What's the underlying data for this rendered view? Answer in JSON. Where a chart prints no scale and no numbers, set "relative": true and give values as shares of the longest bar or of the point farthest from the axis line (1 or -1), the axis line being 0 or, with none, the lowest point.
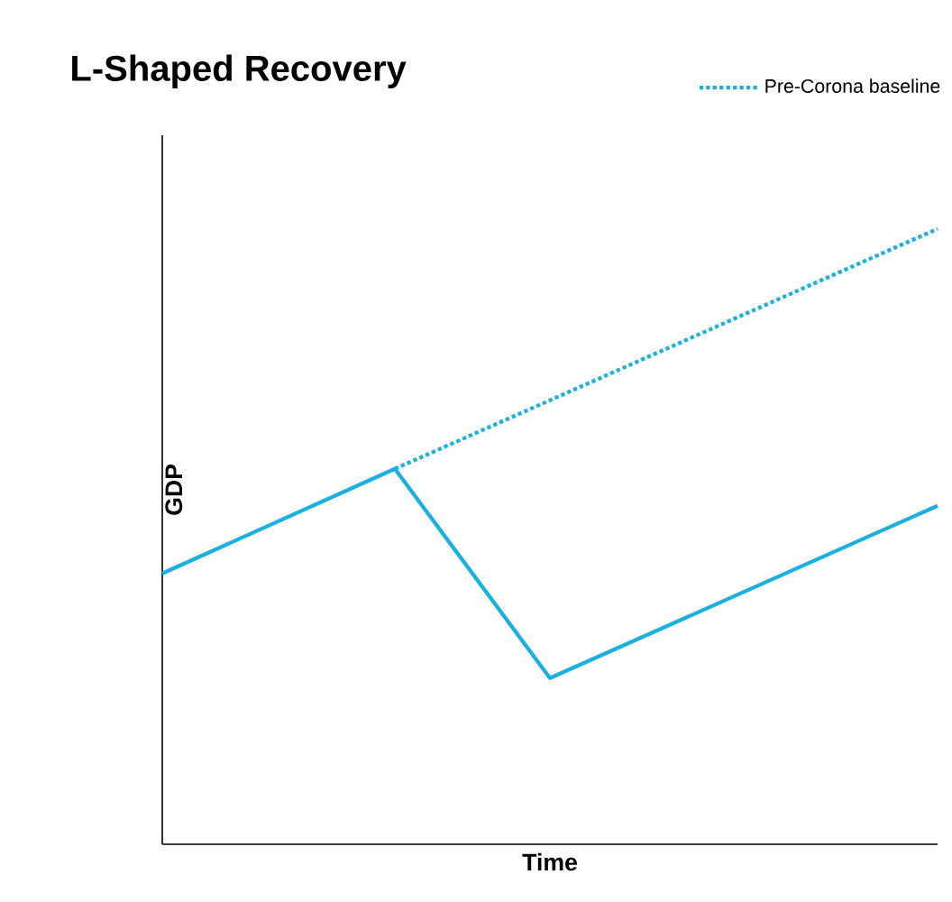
{
  "chart_data": {
    "type": "line",
    "title": "L-Shaped Recovery",
    "xlabel": "Time",
    "ylabel": "GDP",
    "categories": [
      null,
      null,
      null,
      null,
      null,
      null,
      null,
      null,
      null,
      null,
      null
    ],
    "relative": true,
    "tick_labels": false,
    "legend": "top right",
    "series": [
      {
        "color": "#1ab0e0",
        "line_style": "solid",
        "values": [
          0.44,
          null,
          null,
          0.61,
          null,
          0.27,
          null,
          null,
          null,
          null,
          0.55
        ]
      },
      {
        "name": "Pre-Corona baseline",
        "color": "#1ab0e0",
        "line_style": "dotted",
        "values": [
          null,
          null,
          null,
          0.61,
          null,
          null,
          null,
          null,
          null,
          null,
          1.0
        ]
      }
    ]
  }
}
